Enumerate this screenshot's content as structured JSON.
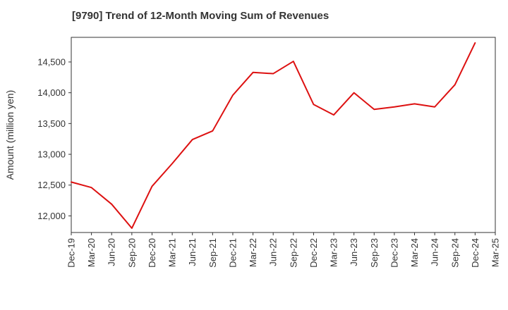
{
  "chart_data": {
    "type": "line",
    "title": "[9790]  Trend of 12-Month Moving Sum of Revenues",
    "ylabel": "Amount (million yen)",
    "xlabel": "",
    "ylim": [
      11730,
      14900
    ],
    "y_ticks": [
      12000,
      12500,
      13000,
      13500,
      14000,
      14500
    ],
    "y_tick_labels": [
      "12,000",
      "12,500",
      "13,000",
      "13,500",
      "14,000",
      "14,500"
    ],
    "x_ticks": [
      "Dec-19",
      "Mar-20",
      "Jun-20",
      "Sep-20",
      "Dec-20",
      "Mar-21",
      "Jun-21",
      "Sep-21",
      "Dec-21",
      "Mar-22",
      "Jun-22",
      "Sep-22",
      "Dec-22",
      "Mar-23",
      "Jun-23",
      "Sep-23",
      "Dec-23",
      "Mar-24",
      "Jun-24",
      "Sep-24",
      "Dec-24",
      "Mar-25"
    ],
    "grid": true,
    "series": [
      {
        "color": "#dd1111",
        "x": [
          "Dec-19",
          "Mar-20",
          "Jun-20",
          "Sep-20",
          "Dec-20",
          "Mar-21",
          "Jun-21",
          "Sep-21",
          "Dec-21",
          "Mar-22",
          "Jun-22",
          "Sep-22",
          "Dec-22",
          "Mar-23",
          "Jun-23",
          "Sep-23",
          "Dec-23",
          "Mar-24",
          "Jun-24",
          "Sep-24",
          "Dec-24"
        ],
        "values": [
          12550,
          12460,
          12190,
          11800,
          12480,
          12850,
          13240,
          13380,
          13960,
          14330,
          14310,
          14510,
          13810,
          13640,
          14000,
          13730,
          13770,
          13820,
          13770,
          14130,
          14810
        ]
      }
    ]
  }
}
